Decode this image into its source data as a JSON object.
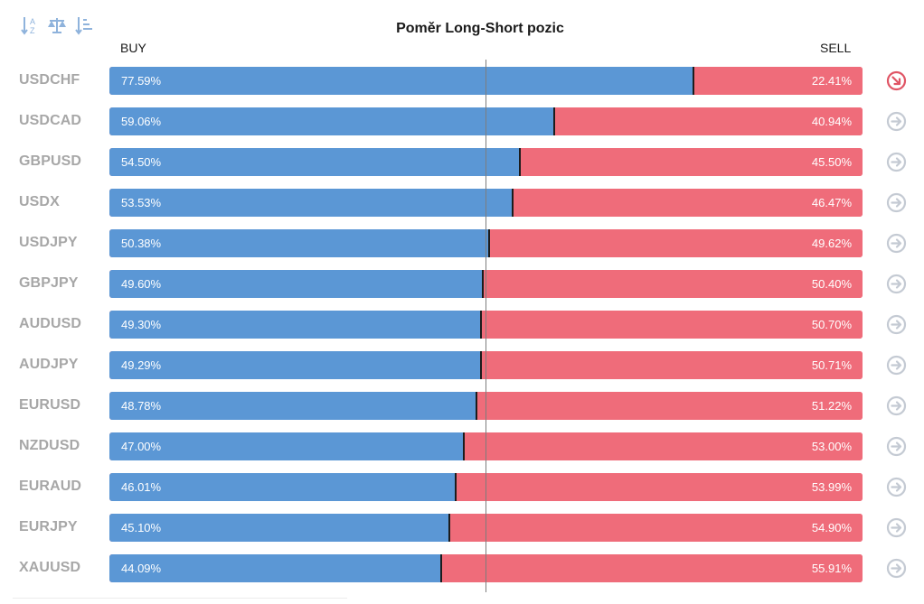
{
  "title": "Poměr Long-Short pozic",
  "buy_label": "BUY",
  "sell_label": "SELL",
  "colors": {
    "buy": "#5b97d5",
    "sell": "#ef6c7a",
    "symbol_text": "#a7a7a7",
    "icon_neutral": "#c4cad3",
    "icon_alert": "#e05565"
  },
  "toolbar": {
    "icons": [
      "sort-alpha-icon",
      "balance-scale-icon",
      "sort-amount-icon"
    ]
  },
  "chart_data": {
    "type": "bar",
    "orientation": "horizontal-stacked-100",
    "title": "Poměr Long-Short pozic",
    "categories": [
      "USDCHF",
      "USDCAD",
      "GBPUSD",
      "USDX",
      "USDJPY",
      "GBPJPY",
      "AUDUSD",
      "AUDJPY",
      "EURUSD",
      "NZDUSD",
      "EURAUD",
      "EURJPY",
      "XAUUSD"
    ],
    "series": [
      {
        "name": "BUY",
        "values": [
          77.59,
          59.06,
          54.5,
          53.53,
          50.38,
          49.6,
          49.3,
          49.29,
          48.78,
          47.0,
          46.01,
          45.1,
          44.09
        ]
      },
      {
        "name": "SELL",
        "values": [
          22.41,
          40.94,
          45.5,
          46.47,
          49.62,
          50.4,
          50.7,
          50.71,
          51.22,
          53.0,
          53.99,
          54.9,
          55.91
        ]
      }
    ],
    "buy_labels": [
      "77.59%",
      "59.06%",
      "54.50%",
      "53.53%",
      "50.38%",
      "49.60%",
      "49.30%",
      "49.29%",
      "48.78%",
      "47.00%",
      "46.01%",
      "45.10%",
      "44.09%"
    ],
    "sell_labels": [
      "22.41%",
      "40.94%",
      "45.50%",
      "46.47%",
      "49.62%",
      "50.40%",
      "50.70%",
      "50.71%",
      "51.22%",
      "53.00%",
      "53.99%",
      "54.90%",
      "55.91%"
    ],
    "row_icons": [
      "arrow-down-right-icon",
      "arrow-right-icon",
      "arrow-right-icon",
      "arrow-right-icon",
      "arrow-right-icon",
      "arrow-right-icon",
      "arrow-right-icon",
      "arrow-right-icon",
      "arrow-right-icon",
      "arrow-right-icon",
      "arrow-right-icon",
      "arrow-right-icon",
      "arrow-right-icon"
    ],
    "xlim": [
      0,
      100
    ],
    "reference_line": 50,
    "grid": false
  }
}
